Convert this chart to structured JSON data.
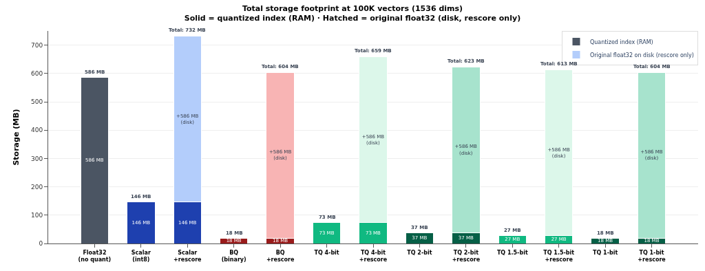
{
  "chart_data": {
    "type": "bar",
    "stacked": true,
    "title": "Total storage footprint at 100K vectors (1536 dims)",
    "subtitle": "Solid = quantized index (RAM) · Hatched = original float32 (disk, rescore only)",
    "ylabel": "Storage (MB)",
    "categories": [
      "Float32\n(no quant)",
      "Scalar\n(int8)",
      "Scalar\n+rescore",
      "BQ\n(binary)",
      "BQ\n+rescore",
      "TQ 4-bit",
      "TQ 4-bit\n+rescore",
      "TQ 2-bit",
      "TQ 2-bit\n+rescore",
      "TQ 1.5-bit",
      "TQ 1.5-bit\n+rescore",
      "TQ 1-bit",
      "TQ 1-bit\n+rescore"
    ],
    "series": [
      {
        "name": "Quantized index (RAM)",
        "colors": [
          "#4b5563",
          "#1e40af",
          "#1e40af",
          "#991b1b",
          "#991b1b",
          "#10b981",
          "#10b981",
          "#065f46",
          "#065f46",
          "#10b981",
          "#10b981",
          "#065f46",
          "#065f46"
        ],
        "values": [
          586,
          146,
          146,
          18,
          18,
          73,
          73,
          37,
          37,
          27,
          27,
          18,
          18
        ],
        "value_labels": [
          "586 MB",
          "146 MB",
          "146 MB",
          "18 MB",
          "18 MB",
          "73 MB",
          "73 MB",
          "37 MB",
          "37 MB",
          "27 MB",
          "27 MB",
          "18 MB",
          "18 MB"
        ]
      },
      {
        "name": "Original float32 on disk (rescore only)",
        "colors": [
          "#b3cdfb",
          "#b3cdfb",
          "#b3cdfb",
          "#f8b4b4",
          "#f8b4b4",
          "#dcf7ea",
          "#dcf7ea",
          "#a7e3cd",
          "#a7e3cd",
          "#dcf7ea",
          "#dcf7ea",
          "#a7e3cd",
          "#a7e3cd"
        ],
        "values": [
          null,
          null,
          586,
          null,
          586,
          null,
          586,
          null,
          586,
          null,
          586,
          null,
          586
        ],
        "value_labels": [
          null,
          null,
          "+586 MB\n(disk)",
          null,
          "+586 MB\n(disk)",
          null,
          "+586 MB\n(disk)",
          null,
          "+586 MB\n(disk)",
          null,
          "+586 MB\n(disk)",
          null,
          "+586 MB\n(disk)"
        ]
      }
    ],
    "totals": [
      "586 MB",
      "146 MB",
      "Total: 732 MB",
      "18 MB",
      "Total: 604 MB",
      "73 MB",
      "Total: 659 MB",
      "37 MB",
      "Total: 623 MB",
      "27 MB",
      "Total: 613 MB",
      "18 MB",
      "Total: 604 MB"
    ],
    "ylim": [
      0,
      750
    ],
    "yticks": [
      0,
      100,
      200,
      300,
      400,
      500,
      600,
      700
    ],
    "grid": "y",
    "legend": "top right"
  }
}
